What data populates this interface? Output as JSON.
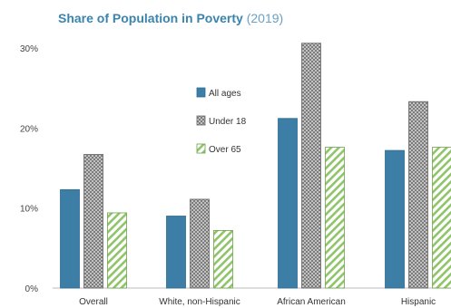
{
  "title": "Share of Population in Poverty",
  "subtitle": "(2019)",
  "chart_data": {
    "type": "bar",
    "title": "Share of Population in Poverty (2019)",
    "xlabel": "",
    "ylabel": "",
    "ylim": [
      0,
      30
    ],
    "yticks": [
      "0%",
      "10%",
      "20%",
      "30%"
    ],
    "ytick_values": [
      0,
      10,
      20,
      30
    ],
    "categories": [
      "Overall",
      "White, non-Hispanic",
      "African American",
      "Hispanic"
    ],
    "series": [
      {
        "name": "All ages",
        "values": [
          12.3,
          9.0,
          21.2,
          17.2
        ],
        "color": "#3d7ea6",
        "pattern": "solid"
      },
      {
        "name": "Under 18",
        "values": [
          16.7,
          11.1,
          30.6,
          23.3
        ],
        "color": "#a8a8a8",
        "pattern": "crosshatch"
      },
      {
        "name": "Over 65",
        "values": [
          9.4,
          7.2,
          17.6,
          17.6
        ],
        "color": "#8fc46a",
        "pattern": "diagonal"
      }
    ],
    "legend_position": "center",
    "grid": false
  }
}
